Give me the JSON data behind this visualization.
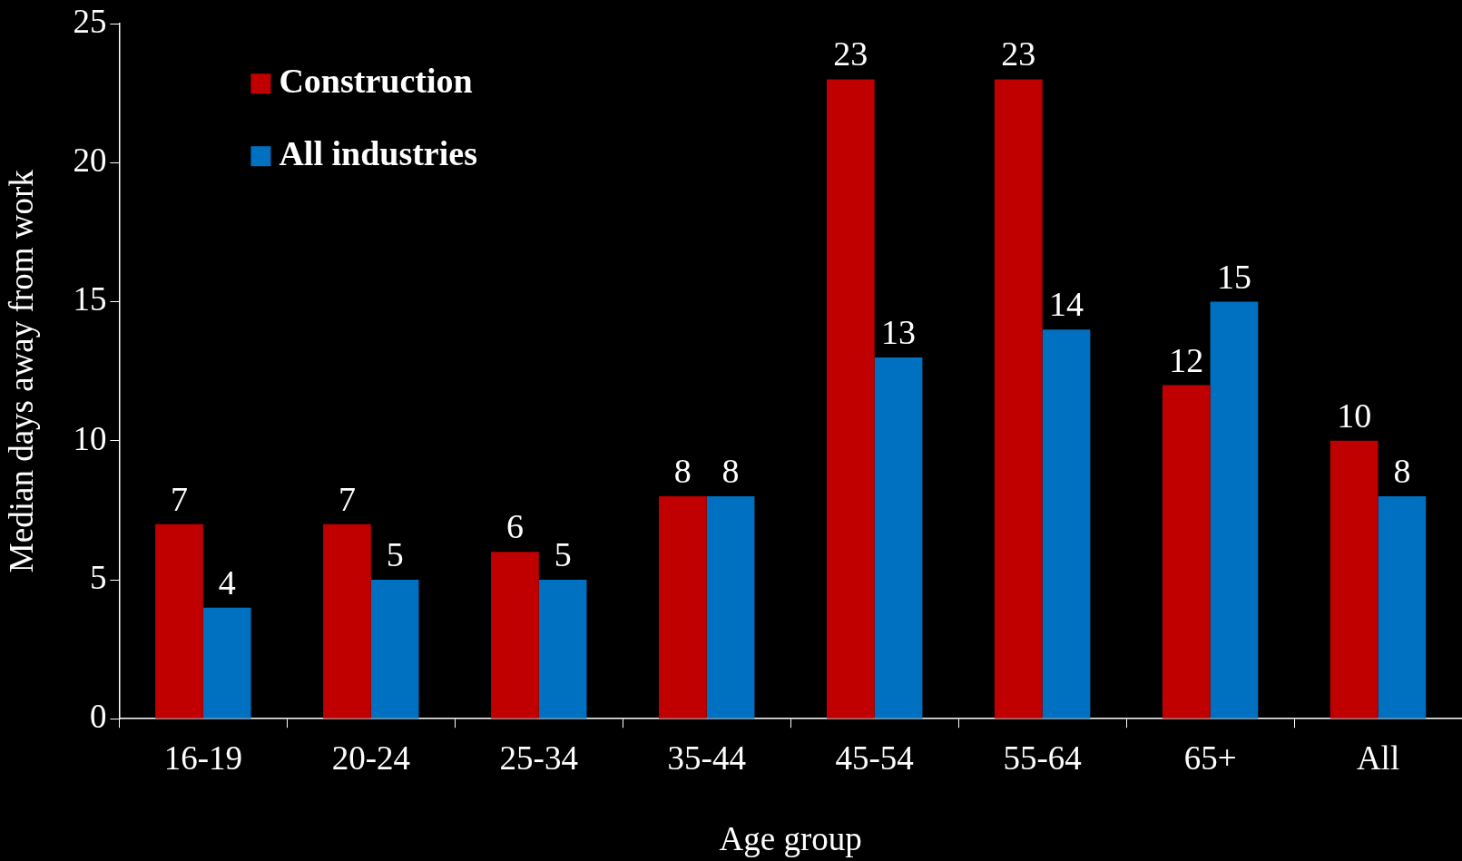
{
  "chart_data": {
    "type": "bar",
    "xlabel": "Age group",
    "ylabel": "Median days away from work",
    "categories": [
      "16-19",
      "20-24",
      "25-34",
      "35-44",
      "45-54",
      "55-64",
      "65+",
      "All"
    ],
    "series": [
      {
        "name": "Construction",
        "color": "#c00000",
        "values": [
          7,
          7,
          6,
          8,
          23,
          23,
          12,
          10
        ]
      },
      {
        "name": "All industries",
        "color": "#0070c0",
        "values": [
          4,
          5,
          5,
          8,
          13,
          14,
          15,
          8
        ]
      }
    ],
    "ylim": [
      0,
      25
    ],
    "yticks": [
      0,
      5,
      10,
      15,
      20,
      25
    ],
    "grid": false,
    "legend": "top left",
    "data_labels": true
  }
}
